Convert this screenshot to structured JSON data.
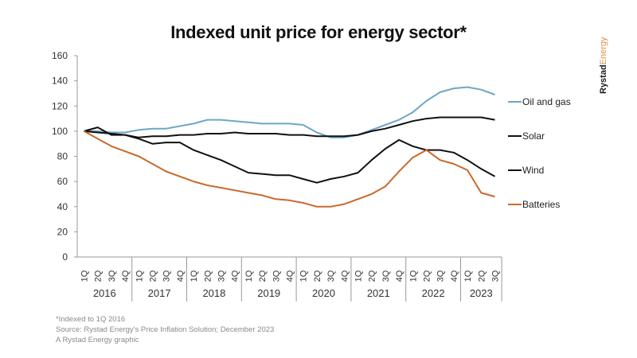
{
  "brand": {
    "part1": "Rystad",
    "part2": "Energy"
  },
  "footer": {
    "note": "*Indexed to 1Q 2016",
    "source": "Source: Rystad Energy's Price Inflation Solution; December 2023",
    "credit": "A Rystad Energy graphic"
  },
  "chart_data": {
    "type": "line",
    "title": "Indexed unit price for energy sector*",
    "xlabel": "",
    "ylabel": "",
    "ylim": [
      0,
      160
    ],
    "yticks": [
      0,
      20,
      40,
      60,
      80,
      100,
      120,
      140,
      160
    ],
    "grid": false,
    "legend_position": "right",
    "years": [
      "2016",
      "2017",
      "2018",
      "2019",
      "2020",
      "2021",
      "2022",
      "2023"
    ],
    "quarters_per_year": [
      4,
      4,
      4,
      4,
      4,
      4,
      4,
      3
    ],
    "x": [
      "1Q",
      "2Q",
      "3Q",
      "4Q",
      "1Q",
      "2Q",
      "3Q",
      "4Q",
      "1Q",
      "2Q",
      "3Q",
      "4Q",
      "1Q",
      "2Q",
      "3Q",
      "4Q",
      "1Q",
      "2Q",
      "3Q",
      "4Q",
      "1Q",
      "2Q",
      "3Q",
      "4Q",
      "1Q",
      "2Q",
      "3Q",
      "4Q",
      "1Q",
      "2Q",
      "3Q"
    ],
    "series": [
      {
        "name": "Oil and gas",
        "color": "#6ea6c8",
        "values": [
          100,
          100,
          99,
          99,
          101,
          102,
          102,
          104,
          106,
          109,
          109,
          108,
          107,
          106,
          106,
          106,
          105,
          99,
          95,
          95,
          97,
          101,
          105,
          109,
          115,
          124,
          131,
          134,
          135,
          133,
          129
        ]
      },
      {
        "name": "Solar",
        "color": "#111111",
        "values": [
          100,
          99,
          98,
          97,
          95,
          96,
          96,
          97,
          97,
          98,
          98,
          99,
          98,
          98,
          98,
          97,
          97,
          96,
          96,
          96,
          97,
          100,
          102,
          105,
          108,
          110,
          111,
          111,
          111,
          111,
          109
        ]
      },
      {
        "name": "Wind",
        "color": "#111111",
        "values": [
          100,
          103,
          97,
          97,
          94,
          90,
          91,
          91,
          85,
          81,
          77,
          72,
          67,
          66,
          65,
          65,
          62,
          59,
          62,
          64,
          67,
          77,
          86,
          93,
          88,
          85,
          85,
          83,
          77,
          70,
          64
        ]
      },
      {
        "name": "Batteries",
        "color": "#c9692a",
        "values": [
          100,
          94,
          88,
          84,
          80,
          74,
          68,
          64,
          60,
          57,
          55,
          53,
          51,
          49,
          46,
          45,
          43,
          40,
          40,
          42,
          46,
          50,
          56,
          68,
          79,
          85,
          77,
          74,
          69,
          51,
          48
        ]
      }
    ]
  }
}
